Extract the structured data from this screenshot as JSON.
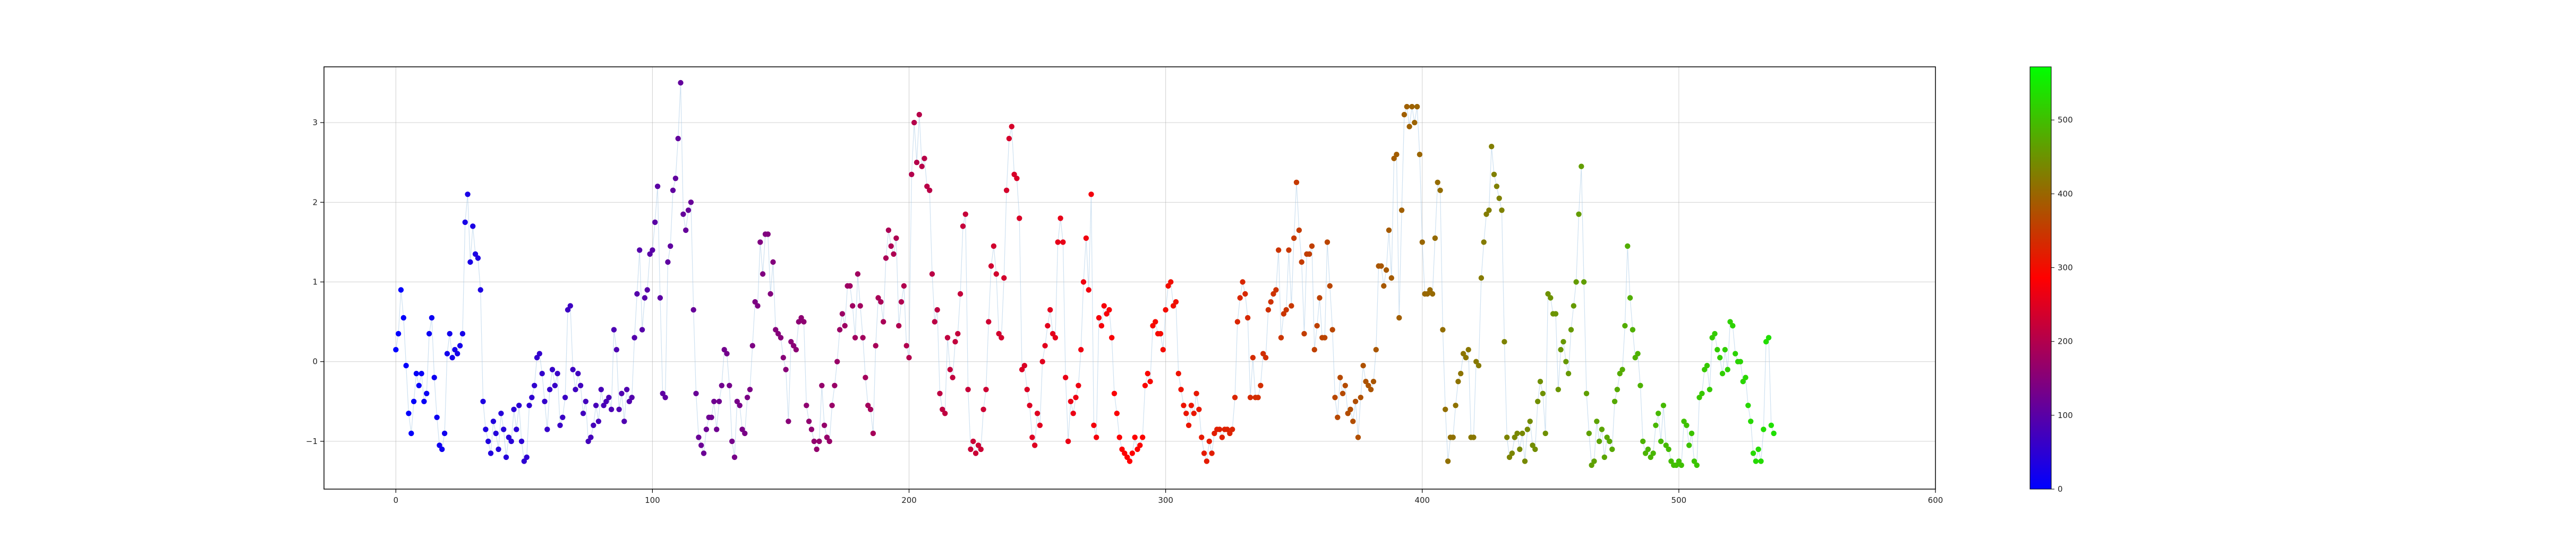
{
  "chart_data": {
    "type": "scatter",
    "title": "",
    "xlabel": "",
    "ylabel": "",
    "xlim": [
      -28,
      600
    ],
    "ylim": [
      -1.6,
      3.7
    ],
    "xticks": [
      0,
      100,
      200,
      300,
      400,
      500,
      600
    ],
    "yticks": [
      -1,
      0,
      1,
      2,
      3
    ],
    "grid": true,
    "connecting_line": {
      "color": "#a6c8e6"
    },
    "colormap": {
      "name": "brg",
      "range": [
        0,
        572
      ],
      "ticks": [
        0,
        100,
        200,
        300,
        400,
        500
      ],
      "colors": [
        "#0000ff",
        "#ff0000",
        "#00ff00"
      ]
    },
    "series": [
      {
        "x_start": 0,
        "x_step": 1,
        "values": [
          0.15,
          0.35,
          0.9,
          0.55,
          -0.05,
          -0.65,
          -0.9,
          -0.5,
          -0.15,
          -0.3,
          -0.15,
          -0.5,
          -0.4,
          0.35,
          0.55,
          -0.2,
          -0.7,
          -1.05,
          -1.1,
          -0.9,
          0.1,
          0.35,
          0.05,
          0.15,
          0.1,
          0.2,
          0.35,
          1.75,
          2.1,
          1.25,
          1.7,
          1.35,
          1.3,
          0.9,
          -0.5,
          -0.85,
          -1.0,
          -1.15,
          -0.75,
          -0.9,
          -1.1,
          -0.65,
          -0.85,
          -1.2,
          -0.95,
          -1.0,
          -0.6,
          -0.85,
          -0.55,
          -1.0,
          -1.25,
          -1.2,
          -0.55,
          -0.45,
          -0.3,
          0.05,
          0.1,
          -0.15,
          -0.5,
          -0.85,
          -0.35,
          -0.1,
          -0.3,
          -0.15,
          -0.8,
          -0.7,
          -0.45,
          0.65,
          0.7,
          -0.1,
          -0.35,
          -0.15,
          -0.3,
          -0.65,
          -0.5,
          -1.0,
          -0.95,
          -0.8,
          -0.55,
          -0.75,
          -0.35,
          -0.55,
          -0.5,
          -0.45,
          -0.6,
          0.4,
          0.15,
          -0.6,
          -0.4,
          -0.75,
          -0.35,
          -0.5,
          -0.45,
          0.3,
          0.85,
          1.4,
          0.4,
          0.8,
          0.9,
          1.35,
          1.4,
          1.75,
          2.2,
          0.8,
          -0.4,
          -0.45,
          1.25,
          1.45,
          2.15,
          2.3,
          2.8,
          3.5,
          1.85,
          1.65,
          1.9,
          2.0,
          0.65,
          -0.4,
          -0.95,
          -1.05,
          -1.15,
          -0.85,
          -0.7,
          -0.7,
          -0.5,
          -0.85,
          -0.5,
          -0.3,
          0.15,
          0.1,
          -0.3,
          -1.0,
          -1.2,
          -0.5,
          -0.55,
          -0.85,
          -0.9,
          -0.45,
          -0.35,
          0.2,
          0.75,
          0.7,
          1.5,
          1.1,
          1.6,
          1.6,
          0.85,
          1.25,
          0.4,
          0.35,
          0.3,
          0.05,
          -0.1,
          -0.75,
          0.25,
          0.2,
          0.15,
          0.5,
          0.55,
          0.5,
          -0.55,
          -0.75,
          -0.85,
          -1.0,
          -1.1,
          -1.0,
          -0.3,
          -0.8,
          -0.95,
          -1.0,
          -0.55,
          -0.3,
          0.0,
          0.4,
          0.6,
          0.45,
          0.95,
          0.95,
          0.7,
          0.3,
          1.1,
          0.7,
          0.3,
          -0.2,
          -0.55,
          -0.6,
          -0.9,
          0.2,
          0.8,
          0.75,
          0.5,
          1.3,
          1.65,
          1.45,
          1.35,
          1.55,
          0.45,
          0.75,
          0.95,
          0.2,
          0.05,
          2.35,
          3.0,
          2.5,
          3.1,
          2.45,
          2.55,
          2.2,
          2.15,
          1.1,
          0.5,
          0.65,
          -0.4,
          -0.6,
          -0.65,
          0.3,
          -0.1,
          -0.2,
          0.25,
          0.35,
          0.85,
          1.7,
          1.85,
          -0.35,
          -1.1,
          -1.0,
          -1.15,
          -1.05,
          -1.1,
          -0.6,
          -0.35,
          0.5,
          1.2,
          1.45,
          1.1,
          0.35,
          0.3,
          1.05,
          2.15,
          2.8,
          2.95,
          2.35,
          2.3,
          1.8,
          -0.1,
          -0.05,
          -0.35,
          -0.55,
          -0.95,
          -1.05,
          -0.65,
          -0.8,
          0.0,
          0.2,
          0.45,
          0.65,
          0.35,
          0.3,
          1.5,
          1.8,
          1.5,
          -0.2,
          -1.0,
          -0.5,
          -0.65,
          -0.45,
          -0.3,
          0.15,
          1.0,
          1.55,
          0.9,
          2.1,
          -0.8,
          -0.95,
          0.55,
          0.45,
          0.7,
          0.6,
          0.65,
          0.3,
          -0.4,
          -0.65,
          -0.95,
          -1.1,
          -1.15,
          -1.2,
          -1.25,
          -1.15,
          -0.95,
          -1.1,
          -1.05,
          -0.95,
          -0.3,
          -0.15,
          -0.25,
          0.45,
          0.5,
          0.35,
          0.35,
          0.15,
          0.65,
          0.95,
          1.0,
          0.7,
          0.75,
          -0.15,
          -0.35,
          -0.55,
          -0.65,
          -0.8,
          -0.55,
          -0.65,
          -0.4,
          -0.6,
          -0.95,
          -1.15,
          -1.25,
          -1.0,
          -1.15,
          -0.9,
          -0.85,
          -0.85,
          -0.95,
          -0.85,
          -0.85,
          -0.9,
          -0.85,
          -0.45,
          0.5,
          0.8,
          1.0,
          0.85,
          0.55,
          -0.45,
          0.05,
          -0.45,
          -0.45,
          -0.3,
          0.1,
          0.05,
          0.65,
          0.75,
          0.85,
          0.9,
          1.4,
          0.3,
          0.6,
          0.65,
          1.4,
          0.7,
          1.55,
          2.25,
          1.65,
          1.25,
          0.35,
          1.35,
          1.35,
          1.45,
          0.15,
          0.45,
          0.8,
          0.3,
          0.3,
          1.5,
          0.95,
          0.4,
          -0.45,
          -0.7,
          -0.2,
          -0.4,
          -0.3,
          -0.65,
          -0.6,
          -0.75,
          -0.5,
          -0.95,
          -0.45,
          -0.05,
          -0.25,
          -0.3,
          -0.35,
          -0.25,
          0.15,
          1.2,
          1.2,
          0.95,
          1.15,
          1.65,
          1.05,
          2.55,
          2.6,
          0.55,
          1.9,
          3.1,
          3.2,
          2.95,
          3.2,
          3.0,
          3.2,
          2.6,
          1.5,
          0.85,
          0.85,
          0.9,
          0.85,
          1.55,
          2.25,
          2.15,
          0.4,
          -0.6,
          -1.25,
          -0.95,
          -0.95,
          -0.55,
          -0.25,
          -0.15,
          0.1,
          0.05,
          0.15,
          -0.95,
          -0.95,
          0.0,
          -0.05,
          1.05,
          1.5,
          1.85,
          1.9,
          2.7,
          2.35,
          2.2,
          2.05,
          1.9,
          0.25,
          -0.95,
          -1.2,
          -1.15,
          -0.95,
          -0.9,
          -1.1,
          -0.9,
          -1.25,
          -0.85,
          -0.75,
          -1.05,
          -1.1,
          -0.5,
          -0.25,
          -0.4,
          -0.9,
          0.85,
          0.8,
          0.6,
          0.6,
          -0.35,
          0.15,
          0.25,
          0.0,
          -0.15,
          0.4,
          0.7,
          1.0,
          1.85,
          2.45,
          1.0,
          -0.4,
          -0.9,
          -1.3,
          -1.25,
          -0.75,
          -1.0,
          -0.85,
          -1.2,
          -0.95,
          -1.0,
          -1.1,
          -0.5,
          -0.35,
          -0.15,
          -0.1,
          0.45,
          1.45,
          0.8,
          0.4,
          0.05,
          0.1,
          -0.3,
          -1.0,
          -1.15,
          -1.1,
          -1.2,
          -1.15,
          -0.8,
          -0.65,
          -1.0,
          -0.55,
          -1.05,
          -1.1,
          -1.25,
          -1.3,
          -1.3,
          -1.25,
          -1.3,
          -0.75,
          -0.8,
          -1.05,
          -0.9,
          -1.25,
          -1.3,
          -0.45,
          -0.4,
          -0.1,
          -0.05,
          -0.35,
          0.3,
          0.35,
          0.15,
          0.05,
          -0.15,
          0.15,
          -0.1,
          0.5,
          0.45,
          0.1,
          0.0,
          0.0,
          -0.25,
          -0.2,
          -0.55,
          -0.75,
          -1.15,
          -1.25,
          -1.1,
          -1.25,
          -0.85,
          0.25,
          0.3,
          -0.8,
          -0.9
        ]
      }
    ]
  }
}
